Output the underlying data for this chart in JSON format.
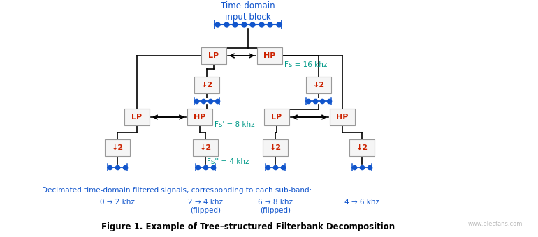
{
  "title": "Figure 1. Example of Tree–structured Filterbank Decomposition",
  "bg_color": "#ffffff",
  "box_edge": "#999999",
  "box_face": "#f5f5f5",
  "text_color": "#cc2200",
  "line_color": "#000000",
  "signal_color": "#1155cc",
  "fs_color": "#009988",
  "label_color": "#1155cc",
  "desc_color": "#1155cc",
  "top_label": "Time-domain\ninput block",
  "fs_labels": [
    "Fs = 16 khz",
    "Fs' = 8 khz",
    "Fs'' = 4 khz"
  ],
  "sub_desc": "Decimated time-domain filtered signals, corresponding to each sub-band:",
  "sub_bands": [
    "0 → 2 khz",
    "2 → 4 khz\n(flipped)",
    "6 → 8 khz\n(flipped)",
    "4 → 6 khz"
  ],
  "watermark": "www.elecfans.com"
}
